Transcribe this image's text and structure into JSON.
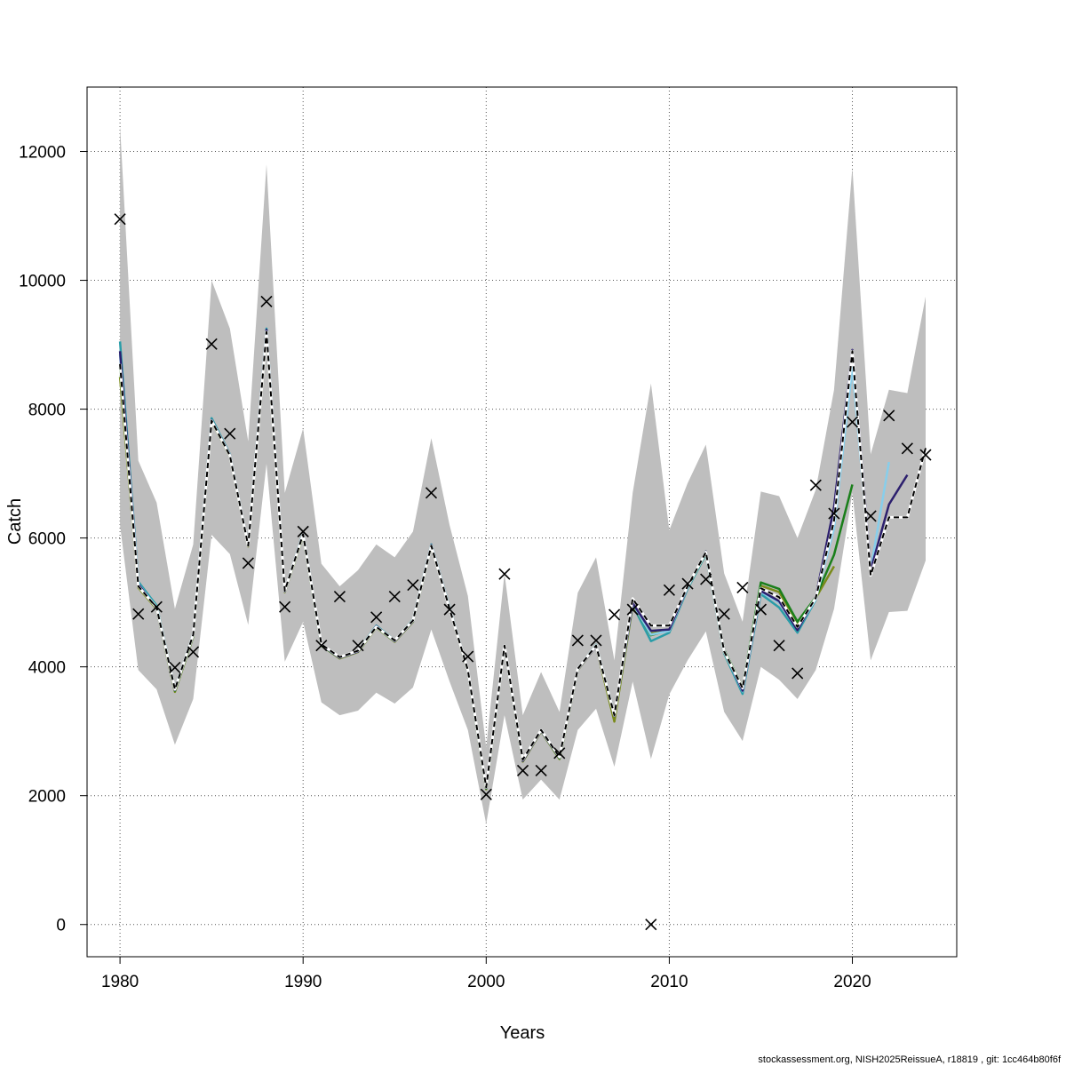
{
  "chart_data": {
    "type": "line",
    "xlabel": "Years",
    "ylabel": "Catch",
    "xlim": [
      1978.2,
      2025.7
    ],
    "ylim": [
      -500,
      13000
    ],
    "x_ticks": [
      1980,
      1990,
      2000,
      2010,
      2020
    ],
    "y_ticks": [
      0,
      2000,
      4000,
      6000,
      8000,
      10000,
      12000
    ],
    "grid": true,
    "footer": "stockassessment.org, NISH2025ReissueA, r18819 , git: 1cc464b80f6f",
    "colors": {
      "band": "#bebebe",
      "observed": "#000000",
      "base": "#000000",
      "peels": [
        "#2c1f6e",
        "#87ceeb",
        "#1a7f1a",
        "#7a8a1a",
        "#2a9da8"
      ]
    },
    "band": {
      "years": [
        1980,
        1981,
        1982,
        1983,
        1984,
        1985,
        1986,
        1987,
        1988,
        1989,
        1990,
        1991,
        1992,
        1993,
        1994,
        1995,
        1996,
        1997,
        1998,
        1999,
        2000,
        2001,
        2002,
        2003,
        2004,
        2005,
        2006,
        2007,
        2008,
        2009,
        2010,
        2011,
        2012,
        2013,
        2014,
        2015,
        2016,
        2017,
        2018,
        2019,
        2020,
        2021,
        2022,
        2023,
        2024
      ],
      "lower": [
        6200,
        3950,
        3650,
        2790,
        3500,
        6050,
        5750,
        4650,
        7150,
        4080,
        4700,
        3450,
        3250,
        3320,
        3600,
        3430,
        3680,
        4580,
        3770,
        3020,
        1560,
        3250,
        1940,
        2250,
        1940,
        3020,
        3350,
        2450,
        3770,
        2570,
        3570,
        4100,
        4550,
        3300,
        2850,
        4000,
        3800,
        3500,
        3950,
        4900,
        6700,
        4100,
        4850,
        4870,
        5650
      ],
      "upper": [
        12400,
        7200,
        6550,
        4900,
        5900,
        10000,
        9250,
        7500,
        11800,
        6700,
        7700,
        5600,
        5250,
        5500,
        5900,
        5700,
        6100,
        7550,
        6200,
        5100,
        2750,
        5450,
        3250,
        3920,
        3300,
        5150,
        5700,
        4100,
        6700,
        8400,
        6120,
        6850,
        7450,
        5450,
        4700,
        6720,
        6650,
        6000,
        6750,
        8300,
        11750,
        7300,
        8300,
        8250,
        9750
      ]
    },
    "observed": {
      "years": [
        1980,
        1981,
        1982,
        1983,
        1984,
        1985,
        1986,
        1987,
        1988,
        1989,
        1990,
        1991,
        1992,
        1993,
        1994,
        1995,
        1996,
        1997,
        1998,
        1999,
        2000,
        2001,
        2002,
        2003,
        2004,
        2005,
        2006,
        2007,
        2008,
        2009,
        2010,
        2011,
        2012,
        2013,
        2014,
        2015,
        2016,
        2017,
        2018,
        2019,
        2020,
        2021,
        2022,
        2023,
        2024
      ],
      "values": [
        10950,
        4820,
        4930,
        3990,
        4230,
        9010,
        7620,
        5610,
        9670,
        4930,
        6100,
        4330,
        5090,
        4330,
        4770,
        5090,
        5270,
        6700,
        4890,
        4160,
        2020,
        5440,
        2390,
        2390,
        2660,
        4410,
        4410,
        4810,
        4890,
        0,
        5190,
        5290,
        5360,
        4820,
        5230,
        4890,
        4330,
        3900,
        6820,
        6380,
        7800,
        6340,
        7900,
        7390,
        7290
      ]
    },
    "series": [
      {
        "years": [
          1980,
          1981,
          1982,
          1983,
          1984,
          1985,
          1986,
          1987,
          1988,
          1989,
          1990,
          1991,
          1992,
          1993,
          1994,
          1995,
          1996,
          1997,
          1998,
          1999,
          2000,
          2001,
          2002,
          2003,
          2004,
          2005,
          2006,
          2007,
          2008,
          2009,
          2010,
          2011,
          2012,
          2013,
          2014,
          2015,
          2016,
          2017,
          2018,
          2019,
          2020,
          2021,
          2022,
          2023,
          2024
        ],
        "values": [
          8700,
          5250,
          4920,
          3650,
          4500,
          7820,
          7280,
          5880,
          9200,
          5180,
          6060,
          4350,
          4150,
          4250,
          4620,
          4410,
          4720,
          5880,
          4900,
          3950,
          2130,
          4330,
          2560,
          3020,
          2600,
          3970,
          4330,
          3250,
          5060,
          4640,
          4640,
          5250,
          5780,
          4240,
          3670,
          5220,
          5080,
          4620,
          5070,
          6270,
          8900,
          5420,
          6320,
          6320,
          7400
        ],
        "dash": "6,4"
      },
      {
        "years": [
          1980,
          1981,
          1982,
          1983,
          1984,
          1985,
          1986,
          1987,
          1988,
          1989,
          1990,
          1991,
          1992,
          1993,
          1994,
          1995,
          1996,
          1997,
          1998,
          1999,
          2000,
          2001,
          2002,
          2003,
          2004,
          2005,
          2006,
          2007,
          2008,
          2009,
          2010,
          2011,
          2012,
          2013,
          2014,
          2015,
          2016,
          2017,
          2018,
          2019,
          2020,
          2021,
          2022,
          2023
        ],
        "values": [
          8900,
          5280,
          4910,
          3640,
          4490,
          7830,
          7290,
          5880,
          9230,
          5170,
          6070,
          4340,
          4140,
          4240,
          4630,
          4400,
          4710,
          5890,
          4910,
          3940,
          2120,
          4320,
          2540,
          3010,
          2590,
          3960,
          4320,
          3240,
          4990,
          4560,
          4580,
          5240,
          5790,
          4250,
          3630,
          5180,
          5020,
          4570,
          5080,
          6480,
          8920,
          5500,
          6520,
          6980
        ]
      },
      {
        "years": [
          1980,
          1981,
          1982,
          1983,
          1984,
          1985,
          1986,
          1987,
          1988,
          1989,
          1990,
          1991,
          1992,
          1993,
          1994,
          1995,
          1996,
          1997,
          1998,
          1999,
          2000,
          2001,
          2002,
          2003,
          2004,
          2005,
          2006,
          2007,
          2008,
          2009,
          2010,
          2011,
          2012,
          2013,
          2014,
          2015,
          2016,
          2017,
          2018,
          2019,
          2020,
          2021,
          2022
        ],
        "values": [
          8850,
          5290,
          4920,
          3640,
          4490,
          7830,
          7280,
          5880,
          9220,
          5170,
          6060,
          4340,
          4140,
          4240,
          4620,
          4400,
          4710,
          5880,
          4910,
          3940,
          2120,
          4320,
          2550,
          3010,
          2590,
          3960,
          4330,
          3240,
          4980,
          4500,
          4560,
          5230,
          5780,
          4240,
          3620,
          5160,
          5000,
          4580,
          5050,
          6150,
          8650,
          5500,
          7180
        ]
      },
      {
        "years": [
          1980,
          1981,
          1982,
          1983,
          1984,
          1985,
          1986,
          1987,
          1988,
          1989,
          1990,
          1991,
          1992,
          1993,
          1994,
          1995,
          1996,
          1997,
          1998,
          1999,
          2000,
          2001,
          2002,
          2003,
          2004,
          2005,
          2006,
          2007,
          2008,
          2009,
          2010,
          2011,
          2012,
          2013,
          2014,
          2015,
          2016,
          2017,
          2018,
          2019,
          2020
        ],
        "values": [
          8650,
          5270,
          4910,
          3630,
          4480,
          7820,
          7280,
          5880,
          9210,
          5170,
          6050,
          4330,
          4140,
          4240,
          4620,
          4400,
          4710,
          5880,
          4910,
          3940,
          2110,
          4320,
          2540,
          3010,
          2580,
          3960,
          4330,
          3240,
          4980,
          4490,
          4570,
          5240,
          5790,
          4260,
          3680,
          5310,
          5210,
          4700,
          5080,
          5740,
          6830
        ]
      },
      {
        "years": [
          1980,
          1981,
          1982,
          1983,
          1984,
          1985,
          1986,
          1987,
          1988,
          1989,
          1990,
          1991,
          1992,
          1993,
          1994,
          1995,
          1996,
          1997,
          1998,
          1999,
          2000,
          2001,
          2002,
          2003,
          2004,
          2005,
          2006,
          2007,
          2008,
          2009,
          2010,
          2011,
          2012,
          2013,
          2014,
          2015,
          2016,
          2017,
          2018,
          2019
        ],
        "values": [
          8500,
          5230,
          4900,
          3610,
          4470,
          7810,
          7270,
          5870,
          9180,
          5160,
          6040,
          4330,
          4130,
          4230,
          4610,
          4390,
          4700,
          5870,
          4900,
          3930,
          2100,
          4310,
          2530,
          3000,
          2570,
          3950,
          4320,
          3150,
          4950,
          4520,
          4560,
          5230,
          5770,
          4230,
          3640,
          5260,
          5160,
          4670,
          5070,
          5560
        ]
      },
      {
        "years": [
          1980,
          1981,
          1982,
          1983,
          1984,
          1985,
          1986,
          1987,
          1988,
          1989,
          1990,
          1991,
          1992,
          1993,
          1994,
          1995,
          1996,
          1997,
          1998,
          1999,
          2000,
          2001,
          2002,
          2003,
          2004,
          2005,
          2006,
          2007,
          2008,
          2009,
          2010,
          2011,
          2012,
          2013,
          2014,
          2015,
          2016,
          2017,
          2018
        ],
        "values": [
          9050,
          5320,
          4950,
          3660,
          4510,
          7860,
          7300,
          5890,
          9250,
          5180,
          6080,
          4350,
          4150,
          4250,
          4640,
          4410,
          4730,
          5900,
          4920,
          3950,
          2120,
          4330,
          2560,
          3020,
          2600,
          3970,
          4340,
          3260,
          4960,
          4400,
          4530,
          5210,
          5750,
          4210,
          3580,
          5130,
          4920,
          4530,
          5040
        ]
      }
    ]
  }
}
